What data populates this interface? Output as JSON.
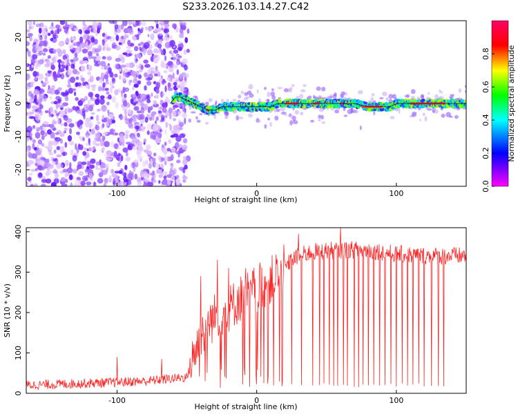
{
  "title": "S233.2026.103.14.27.C42",
  "chart_data": [
    {
      "type": "heatmap",
      "xlabel": "Height of straight line (km)",
      "ylabel": "Frequency (Hz)",
      "xlim": [
        -165,
        150
      ],
      "ylim": [
        -25,
        25
      ],
      "x_ticks": [
        -100,
        0,
        100
      ],
      "y_ticks": [
        -20,
        -10,
        0,
        10,
        20
      ],
      "colorbar": {
        "label": "Normalized spectral amplitude",
        "range": [
          0,
          1
        ],
        "ticks": [
          0.0,
          0.2,
          0.4,
          0.6,
          0.8
        ],
        "colormap": [
          "#ff00ff",
          "#0000ff",
          "#00ffff",
          "#00ff00",
          "#ffff00",
          "#ff0000",
          "#ff0066"
        ]
      },
      "ridge": {
        "x": [
          -62,
          -58,
          -55,
          -50,
          -45,
          -40,
          -35,
          -30,
          -25,
          -20,
          -10,
          0,
          10,
          15,
          20,
          30,
          40,
          50,
          60,
          70,
          80,
          90,
          95,
          100,
          110,
          120,
          130,
          140,
          150
        ],
        "y": [
          0,
          2,
          2,
          1,
          0,
          -1,
          -2,
          -2,
          -1,
          -1,
          -1,
          -1,
          -1,
          0,
          0,
          0,
          0,
          0,
          0,
          0,
          -1,
          -1,
          -1,
          0,
          0,
          0,
          0,
          0,
          0
        ]
      },
      "noise_region_x": [
        -165,
        -55
      ]
    },
    {
      "type": "line",
      "xlabel": "Height of straight line (km)",
      "ylabel": "SNR (10 * v/v)",
      "xlim": [
        -165,
        150
      ],
      "ylim": [
        0,
        410
      ],
      "x_ticks": [
        -100,
        0,
        100
      ],
      "y_ticks": [
        0,
        100,
        200,
        300,
        400
      ],
      "series": [
        {
          "color": "#ff2020",
          "baseline": {
            "x": [
              -165,
              -120,
              -80,
              -50,
              -45,
              -40,
              -35,
              -30,
              -20,
              -10,
              0,
              10,
              20,
              25,
              30,
              40,
              60,
              80,
              100,
              120,
              150
            ],
            "y": [
              20,
              25,
              30,
              40,
              90,
              140,
              170,
              190,
              210,
              240,
              260,
              280,
              310,
              330,
              340,
              350,
              355,
              355,
              345,
              340,
              340
            ]
          },
          "spikes": [
            {
              "x": -100,
              "y": 90
            },
            {
              "x": -68,
              "y": 85
            },
            {
              "x": -40,
              "y": 290
            },
            {
              "x": -28,
              "y": 330
            },
            {
              "x": -20,
              "y": 310
            },
            {
              "x": -8,
              "y": 310
            },
            {
              "x": 30,
              "y": 395
            },
            {
              "x": 60,
              "y": 410
            },
            {
              "x": 70,
              "y": 400
            }
          ],
          "dropouts_x": [
            -10,
            -5,
            0,
            5,
            12,
            18,
            25,
            32,
            40,
            45,
            48,
            52,
            55,
            58,
            62,
            65,
            70,
            73,
            76,
            80,
            84,
            88,
            92,
            96,
            100,
            104,
            108,
            112,
            116,
            120,
            125,
            130,
            134
          ],
          "dropout_min": 15
        }
      ]
    }
  ]
}
